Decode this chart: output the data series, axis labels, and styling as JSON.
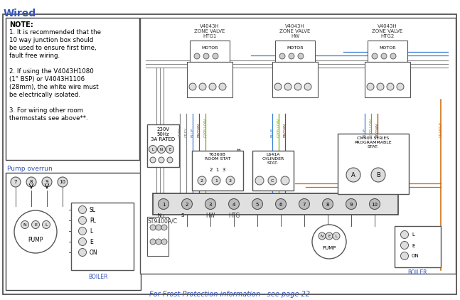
{
  "title": "Wired",
  "bg_color": "#ffffff",
  "note_title": "NOTE:",
  "note_lines": [
    "1. It is recommended that the",
    "10 way junction box should",
    "be used to ensure first time,",
    "fault free wiring.",
    " ",
    "2. If using the V4043H1080",
    "(1\" BSP) or V4043H1106",
    "(28mm), the white wire must",
    "be electrically isolated.",
    " ",
    "3. For wiring other room",
    "thermostats see above**."
  ],
  "pump_overrun": "Pump overrun",
  "footer": "For Frost Protection information - see page 22",
  "v1_label": "V4043H\nZONE VALVE\nHTG1",
  "v2_label": "V4043H\nZONE VALVE\nHW",
  "v3_label": "V4043H\nZONE VALVE\nHTG2",
  "power_label": "230V\n50Hz\n3A RATED",
  "stat1": "T6360B\nROOM STAT",
  "stat2": "L641A\nCYLINDER\nSTAT.",
  "cm_label": "CM900 SERIES\nPROGRAMMABLE\nSTAT.",
  "st_label": "ST9400A/C",
  "boiler_lbl": "BOILER",
  "pump_lbl": "PUMP",
  "hw_htg": "HW HTG",
  "wc_grey": "#888888",
  "wc_blue": "#3a7fd5",
  "wc_brown": "#8B4513",
  "wc_gyellow": "#7aaa10",
  "wc_orange": "#cc6600",
  "wc_yellow": "#ccaa00",
  "wc_black": "#222222",
  "text_blue": "#3355bb",
  "text_orange": "#cc6600"
}
